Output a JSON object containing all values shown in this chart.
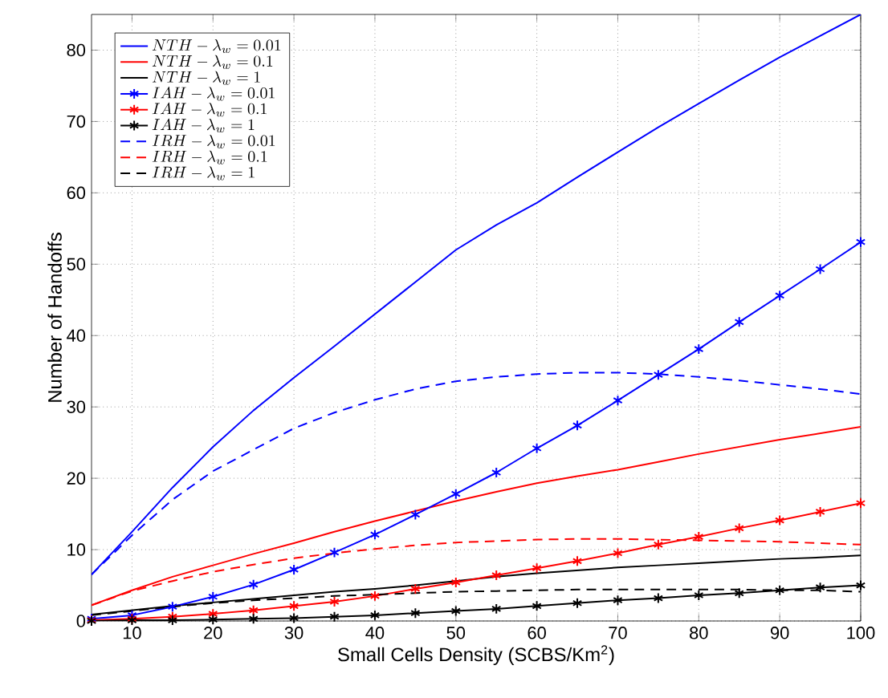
{
  "chart_data": {
    "type": "line",
    "xlabel": "Small Cells Density (SCBS/Km$^{2}$)",
    "ylabel": "Number of Handoffs",
    "x": [
      5,
      10,
      15,
      20,
      25,
      30,
      35,
      40,
      45,
      50,
      55,
      60,
      65,
      70,
      75,
      80,
      85,
      90,
      95,
      100
    ],
    "xlim": [
      5,
      100
    ],
    "ylim": [
      0,
      85
    ],
    "xticks": [
      10,
      20,
      30,
      40,
      50,
      60,
      70,
      80,
      90,
      100
    ],
    "yticks": [
      0,
      10,
      20,
      30,
      40,
      50,
      60,
      70,
      80
    ],
    "grid": true,
    "legend": "top left",
    "series": [
      {
        "name": "NTH-\\lambda_w=0.01",
        "color": "#0000ff",
        "line_style": "solid",
        "marker": "none",
        "values": [
          6.5,
          12.5,
          18.7,
          24.4,
          29.5,
          34.1,
          38.5,
          43,
          47.5,
          52,
          55.5,
          58.6,
          62.2,
          65.7,
          69.2,
          72.5,
          75.8,
          79,
          82,
          85
        ]
      },
      {
        "name": "NTH-\\lambda_w=0.1",
        "color": "#ff0000",
        "line_style": "solid",
        "marker": "none",
        "values": [
          2.2,
          4.3,
          6.2,
          7.8,
          9.4,
          10.9,
          12.5,
          14,
          15.4,
          16.8,
          18.1,
          19.3,
          20.3,
          21.2,
          22.3,
          23.4,
          24.4,
          25.4,
          26.3,
          27.2
        ]
      },
      {
        "name": "NTH-\\lambda_w=1",
        "color": "#000000",
        "line_style": "solid",
        "marker": "none",
        "values": [
          0.9,
          1.5,
          2.1,
          2.6,
          3.1,
          3.6,
          4.1,
          4.5,
          5.0,
          5.6,
          6.2,
          6.7,
          7.1,
          7.5,
          7.8,
          8.1,
          8.4,
          8.7,
          8.9,
          9.2
        ]
      },
      {
        "name": "IAH-\\lambda_w=0.01",
        "color": "#0000ff",
        "line_style": "solid",
        "marker": "cross",
        "values": [
          0.3,
          0.8,
          2,
          3.4,
          5.1,
          7.2,
          9.6,
          12.1,
          14.9,
          17.8,
          20.8,
          24.2,
          27.4,
          30.9,
          34.5,
          38.1,
          41.9,
          45.6,
          49.3,
          53.1
        ]
      },
      {
        "name": "IAH-\\lambda_w=0.1",
        "color": "#ff0000",
        "line_style": "solid",
        "marker": "cross",
        "values": [
          0.1,
          0.3,
          0.6,
          1.0,
          1.5,
          2.1,
          2.7,
          3.5,
          4.5,
          5.4,
          6.4,
          7.4,
          8.4,
          9.5,
          10.7,
          11.8,
          13,
          14.1,
          15.3,
          16.5
        ]
      },
      {
        "name": "IAH-\\lambda_w=1",
        "color": "#000000",
        "line_style": "solid",
        "marker": "cross",
        "values": [
          0.0,
          0.1,
          0.1,
          0.2,
          0.3,
          0.4,
          0.6,
          0.8,
          1.1,
          1.4,
          1.7,
          2.1,
          2.5,
          2.9,
          3.2,
          3.6,
          3.9,
          4.3,
          4.7,
          5.0
        ]
      },
      {
        "name": "IRH-\\lambda_w=0.01",
        "color": "#0000ff",
        "line_style": "dashed",
        "marker": "none",
        "values": [
          6.5,
          12,
          17,
          21,
          24,
          27,
          29.2,
          31,
          32.5,
          33.6,
          34.2,
          34.6,
          34.8,
          34.8,
          34.6,
          34.2,
          33.7,
          33.1,
          32.5,
          31.8
        ]
      },
      {
        "name": "IRH-\\lambda_w=0.1",
        "color": "#ff0000",
        "line_style": "dashed",
        "marker": "none",
        "values": [
          2.2,
          4.2,
          5.6,
          6.9,
          7.9,
          8.8,
          9.5,
          10.1,
          10.6,
          11,
          11.2,
          11.4,
          11.5,
          11.5,
          11.4,
          11.3,
          11.2,
          11.1,
          10.9,
          10.7
        ]
      },
      {
        "name": "IRH-\\lambda_w=1",
        "color": "#000000",
        "line_style": "dashed",
        "marker": "none",
        "values": [
          0.8,
          1.4,
          2.0,
          2.5,
          2.9,
          3.2,
          3.5,
          3.7,
          3.9,
          4.1,
          4.2,
          4.3,
          4.4,
          4.4,
          4.4,
          4.4,
          4.4,
          4.3,
          4.3,
          4.1
        ]
      }
    ]
  }
}
